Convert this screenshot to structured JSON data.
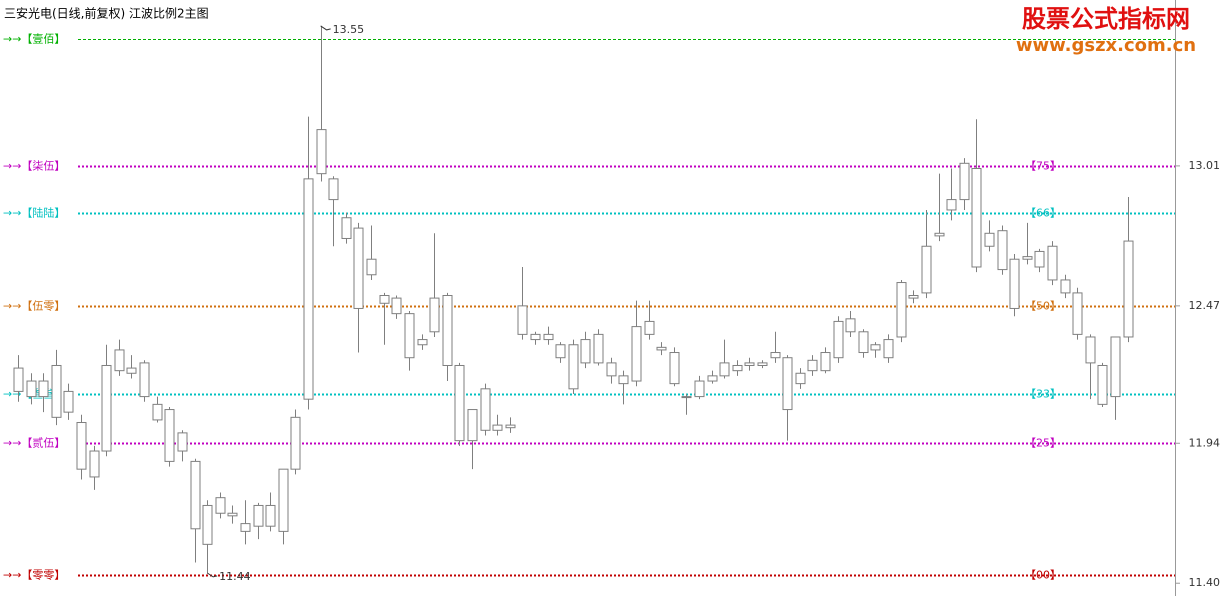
{
  "chart_data": {
    "type": "candlestick",
    "title": "三安光电(日线,前复权) 江波比例2主图",
    "watermark": "股票公式指标网",
    "watermark_url": "www.gszx.com.cn",
    "ylim": [
      11.37,
      13.65
    ],
    "yticks": [
      13.01,
      12.47,
      11.94,
      {
        "value": 11.4,
        "label": "11.40"
      }
    ],
    "annotations": [
      13.55,
      11.44
    ],
    "color": "#7f7f7f",
    "levels": [
      {
        "label": "→→【壹佰】",
        "value": 13.5,
        "color": "#00b000"
      },
      {
        "label": "→→【柒伍】",
        "value": 13.01,
        "color": "#c000c0",
        "tag": "【75】"
      },
      {
        "label": "→→【陆陆】",
        "value": 12.83,
        "color": "#00c0c0",
        "tag": "【66】"
      },
      {
        "label": "→→【伍零】",
        "value": 12.47,
        "color": "#d07010",
        "tag": "【50】"
      },
      {
        "label": "→→【叁叁】",
        "value": 12.13,
        "color": "#00c0c0",
        "tag": "【33】"
      },
      {
        "label": "→→【贰伍】",
        "value": 11.94,
        "color": "#c000c0",
        "tag": "【25】"
      },
      {
        "label": "→→【零零】",
        "value": 11.43,
        "color": "#c00000",
        "tag": "【00】"
      }
    ],
    "ohlc": [
      [
        12.14,
        12.28,
        12.1,
        12.23
      ],
      [
        12.18,
        12.21,
        12.09,
        12.12
      ],
      [
        12.12,
        12.21,
        12.06,
        12.18
      ],
      [
        12.24,
        12.3,
        12.01,
        12.04
      ],
      [
        12.06,
        12.17,
        12.03,
        12.14
      ],
      [
        12.02,
        12.05,
        11.8,
        11.84
      ],
      [
        11.91,
        11.93,
        11.76,
        11.81
      ],
      [
        11.91,
        12.32,
        11.89,
        12.24
      ],
      [
        12.22,
        12.34,
        12.2,
        12.3
      ],
      [
        12.23,
        12.28,
        12.19,
        12.21
      ],
      [
        12.25,
        12.26,
        12.1,
        12.12
      ],
      [
        12.09,
        12.12,
        12.02,
        12.03
      ],
      [
        12.07,
        12.08,
        11.85,
        11.87
      ],
      [
        11.91,
        11.99,
        11.87,
        11.98
      ],
      [
        11.87,
        11.88,
        11.48,
        11.61
      ],
      [
        11.7,
        11.72,
        11.44,
        11.55
      ],
      [
        11.67,
        11.75,
        11.65,
        11.73
      ],
      [
        11.67,
        11.7,
        11.63,
        11.66
      ],
      [
        11.6,
        11.72,
        11.55,
        11.63
      ],
      [
        11.62,
        11.71,
        11.57,
        11.7
      ],
      [
        11.7,
        11.75,
        11.6,
        11.62
      ],
      [
        11.6,
        11.84,
        11.55,
        11.84
      ],
      [
        11.84,
        12.07,
        11.82,
        12.04
      ],
      [
        12.11,
        13.2,
        12.07,
        12.96
      ],
      [
        12.98,
        13.55,
        12.95,
        13.15
      ],
      [
        12.96,
        12.97,
        12.7,
        12.88
      ],
      [
        12.73,
        12.83,
        12.71,
        12.81
      ],
      [
        12.77,
        12.79,
        12.29,
        12.46
      ],
      [
        12.59,
        12.78,
        12.57,
        12.65
      ],
      [
        12.51,
        12.52,
        12.32,
        12.48
      ],
      [
        12.5,
        12.51,
        12.42,
        12.44
      ],
      [
        12.44,
        12.45,
        12.22,
        12.27
      ],
      [
        12.32,
        12.36,
        12.3,
        12.34
      ],
      [
        12.37,
        12.75,
        12.35,
        12.5
      ],
      [
        12.51,
        12.52,
        12.18,
        12.24
      ],
      [
        12.24,
        12.25,
        11.93,
        11.95
      ],
      [
        11.95,
        12.07,
        11.84,
        12.07
      ],
      [
        11.99,
        12.17,
        11.97,
        12.15
      ],
      [
        12.01,
        12.05,
        11.97,
        11.99
      ],
      [
        12.0,
        12.04,
        11.98,
        12.01
      ],
      [
        12.36,
        12.62,
        12.34,
        12.47
      ],
      [
        12.34,
        12.37,
        12.32,
        12.36
      ],
      [
        12.36,
        12.39,
        12.32,
        12.34
      ],
      [
        12.32,
        12.33,
        12.25,
        12.27
      ],
      [
        12.32,
        12.34,
        12.13,
        12.15
      ],
      [
        12.25,
        12.37,
        12.23,
        12.34
      ],
      [
        12.36,
        12.38,
        12.24,
        12.25
      ],
      [
        12.25,
        12.27,
        12.17,
        12.2
      ],
      [
        12.2,
        12.22,
        12.09,
        12.17
      ],
      [
        12.18,
        12.49,
        12.16,
        12.39
      ],
      [
        12.36,
        12.49,
        12.34,
        12.41
      ],
      [
        12.31,
        12.33,
        12.28,
        12.3
      ],
      [
        12.29,
        12.31,
        12.16,
        12.17
      ],
      [
        12.12,
        12.13,
        12.05,
        12.12
      ],
      [
        12.12,
        12.2,
        12.11,
        12.18
      ],
      [
        12.18,
        12.22,
        12.17,
        12.2
      ],
      [
        12.2,
        12.34,
        12.19,
        12.25
      ],
      [
        12.24,
        12.26,
        12.2,
        12.22
      ],
      [
        12.24,
        12.27,
        12.22,
        12.25
      ],
      [
        12.25,
        12.26,
        12.23,
        12.24
      ],
      [
        12.27,
        12.37,
        12.25,
        12.29
      ],
      [
        12.27,
        12.28,
        11.95,
        12.07
      ],
      [
        12.17,
        12.23,
        12.15,
        12.21
      ],
      [
        12.22,
        12.28,
        12.2,
        12.26
      ],
      [
        12.22,
        12.31,
        12.21,
        12.29
      ],
      [
        12.27,
        12.43,
        12.25,
        12.41
      ],
      [
        12.37,
        12.45,
        12.35,
        12.42
      ],
      [
        12.37,
        12.38,
        12.27,
        12.29
      ],
      [
        12.3,
        12.33,
        12.27,
        12.32
      ],
      [
        12.27,
        12.36,
        12.25,
        12.34
      ],
      [
        12.35,
        12.57,
        12.33,
        12.56
      ],
      [
        12.5,
        12.53,
        12.48,
        12.51
      ],
      [
        12.52,
        12.84,
        12.5,
        12.7
      ],
      [
        12.74,
        12.98,
        12.72,
        12.75
      ],
      [
        12.84,
        13.0,
        12.8,
        12.88
      ],
      [
        12.88,
        13.04,
        12.84,
        13.02
      ],
      [
        13.0,
        13.19,
        12.6,
        12.62
      ],
      [
        12.7,
        12.8,
        12.68,
        12.75
      ],
      [
        12.76,
        12.78,
        12.59,
        12.61
      ],
      [
        12.65,
        12.67,
        12.43,
        12.46
      ],
      [
        12.65,
        12.79,
        12.63,
        12.66
      ],
      [
        12.62,
        12.69,
        12.6,
        12.68
      ],
      [
        12.7,
        12.72,
        12.55,
        12.57
      ],
      [
        12.57,
        12.59,
        12.5,
        12.52
      ],
      [
        12.52,
        12.54,
        12.34,
        12.36
      ],
      [
        12.35,
        12.36,
        12.11,
        12.25
      ],
      [
        12.24,
        12.25,
        12.08,
        12.09
      ],
      [
        12.12,
        12.35,
        12.03,
        12.35
      ],
      [
        12.35,
        12.89,
        12.33,
        12.72
      ]
    ]
  }
}
